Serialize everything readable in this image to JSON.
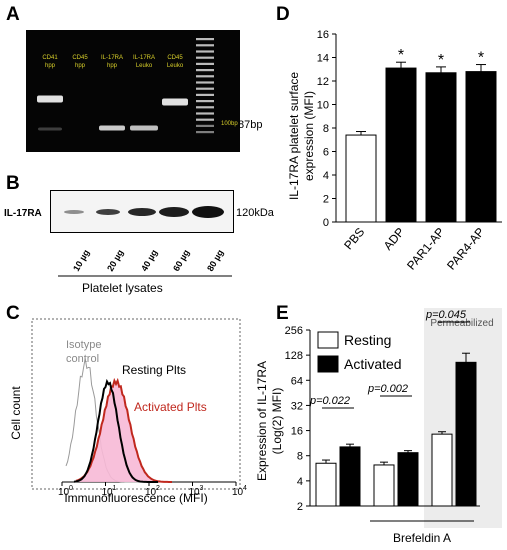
{
  "panels": {
    "a": {
      "label": "A",
      "lanes": [
        {
          "line1": "CD41",
          "line2": "hpp"
        },
        {
          "line1": "CD45",
          "line2": "hpp"
        },
        {
          "line1": "IL-17RA",
          "line2": "hpp"
        },
        {
          "line1": "IL-17RA",
          "line2": "Leuko"
        },
        {
          "line1": "CD45",
          "line2": "Leuko"
        }
      ],
      "ladder_label": "100bp",
      "band_label": "87bp"
    },
    "b": {
      "label": "B",
      "row_label": "IL-17RA",
      "size_label": "120kDa",
      "lanes": [
        "10 µg",
        "20 µg",
        "40 µg",
        "60 µg",
        "80 µg"
      ],
      "caption": "Platelet lysates"
    },
    "c": {
      "label": "C",
      "ylabel": "Cell count",
      "xlabel": "Immunofluorescence (MFI)",
      "iso_line1": "Isotype",
      "iso_line2": "control",
      "resting": "Resting Plts",
      "activated": "Activated Plts",
      "ticks": [
        {
          "base": "10",
          "exp": "0"
        },
        {
          "base": "10",
          "exp": "1"
        },
        {
          "base": "10",
          "exp": "2"
        },
        {
          "base": "10",
          "exp": "3"
        },
        {
          "base": "10",
          "exp": "4"
        }
      ]
    },
    "d": {
      "label": "D"
    },
    "e": {
      "label": "E",
      "permeabilized": "Permeabilized",
      "brefeldin": "Brefeldin A"
    }
  },
  "chart_data": [
    {
      "type": "bar",
      "panel": "D",
      "ylabel_line1": "IL-17RA platelet surface",
      "ylabel_line2": "expression  (MFI)",
      "categories": [
        "PBS",
        "ADP",
        "PAR1-AP",
        "PAR4-AP"
      ],
      "values": [
        7.4,
        13.1,
        12.7,
        12.8
      ],
      "errors": [
        0.3,
        0.5,
        0.5,
        0.6
      ],
      "significance": [
        "",
        "*",
        "*",
        "*"
      ],
      "fills": [
        "#ffffff",
        "#000000",
        "#000000",
        "#000000"
      ],
      "ylim": [
        0,
        16
      ],
      "yticks": [
        "0",
        "2",
        "4",
        "6",
        "8",
        "10",
        "12",
        "14",
        "16"
      ]
    },
    {
      "type": "bar",
      "panel": "E",
      "ylabel_line1": "Expression of IL-17RA",
      "ylabel_line2": "(Log(2) MFI)",
      "scale": "log2",
      "ylim": [
        2,
        256
      ],
      "yticks": [
        "2",
        "4",
        "8",
        "16",
        "32",
        "64",
        "128",
        "256"
      ],
      "series": [
        {
          "name": "Resting",
          "color": "#ffffff",
          "values": [
            6.5,
            6.2,
            14.5
          ],
          "errors": [
            0.6,
            0.5,
            1.0
          ]
        },
        {
          "name": "Activated",
          "color": "#000000",
          "values": [
            10.2,
            8.7,
            105
          ],
          "errors": [
            0.8,
            0.5,
            30
          ]
        }
      ],
      "annotations": [
        "p=0.022",
        "p=0.002",
        "p=0.045"
      ]
    }
  ]
}
